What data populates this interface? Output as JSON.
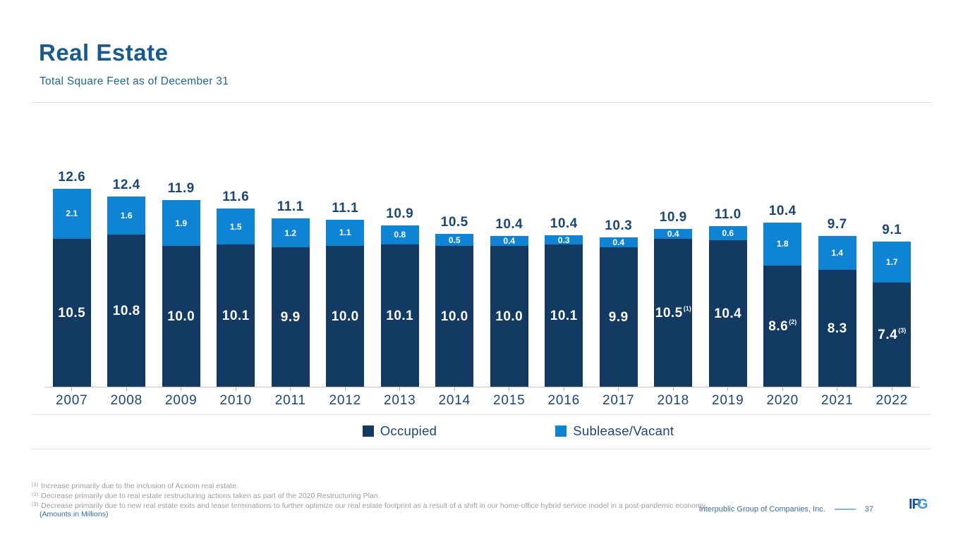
{
  "slide": {
    "title": "Real Estate",
    "subtitle": "Total Square Feet as of December 31"
  },
  "colors": {
    "title_blue": "#175a8e",
    "subtitle_blue": "#1f6794",
    "label_navy": "#1c4674",
    "footnote_gray": "#9e9e9e",
    "note_blue": "#2e6da8",
    "footer_blue": "#3a6f9f"
  },
  "chart_data": {
    "type": "bar",
    "stacked": true,
    "title": "Total Square Feet as of December 31",
    "units": "millions of square feet",
    "categories": [
      "2007",
      "2008",
      "2009",
      "2010",
      "2011",
      "2012",
      "2013",
      "2014",
      "2015",
      "2016",
      "2017",
      "2018",
      "2019",
      "2020",
      "2021",
      "2022"
    ],
    "series": [
      {
        "name": "Occupied",
        "color": "#123a63",
        "values": [
          10.5,
          10.8,
          10.0,
          10.1,
          9.9,
          10.0,
          10.1,
          10.0,
          10.0,
          10.1,
          9.9,
          10.5,
          10.4,
          8.6,
          8.3,
          7.4
        ]
      },
      {
        "name": "Sublease/Vacant",
        "color": "#1084d4",
        "values": [
          2.1,
          1.6,
          1.9,
          1.5,
          1.2,
          1.1,
          0.8,
          0.5,
          0.4,
          0.3,
          0.4,
          0.4,
          0.6,
          1.8,
          1.4,
          1.7
        ]
      }
    ],
    "totals": [
      12.6,
      12.4,
      11.9,
      11.6,
      11.1,
      11.1,
      10.9,
      10.5,
      10.4,
      10.4,
      10.3,
      10.9,
      11.0,
      10.4,
      9.7,
      9.1
    ],
    "footnote_refs": {
      "11": "(1)",
      "13": "(2)",
      "15": "(3)"
    },
    "ylim": [
      0,
      14
    ],
    "grid": false,
    "legend_position": "bottom"
  },
  "legend": {
    "items": [
      {
        "label": "Occupied",
        "color": "#123a63"
      },
      {
        "label": "Sublease/Vacant",
        "color": "#1084d4"
      }
    ]
  },
  "footnotes": [
    {
      "marker": "(1)",
      "text": "Increase primarily due to the inclusion of Acxiom real estate."
    },
    {
      "marker": "(2)",
      "text": "Decrease primarily due to real estate restructuring actions taken as part of the 2020 Restructuring Plan."
    },
    {
      "marker": "(3)",
      "text": "Decrease primarily due to new real estate exits and lease terminations to further optimize our real estate footprint as a result of a shift in our home-office hybrid service model in a post-pandemic economy."
    }
  ],
  "amounts_note": "(Amounts in Millions)",
  "footer": {
    "company": "Interpublic Group of Companies, Inc.",
    "page": "37",
    "logo": {
      "ip": "IP",
      "g": "G"
    }
  }
}
